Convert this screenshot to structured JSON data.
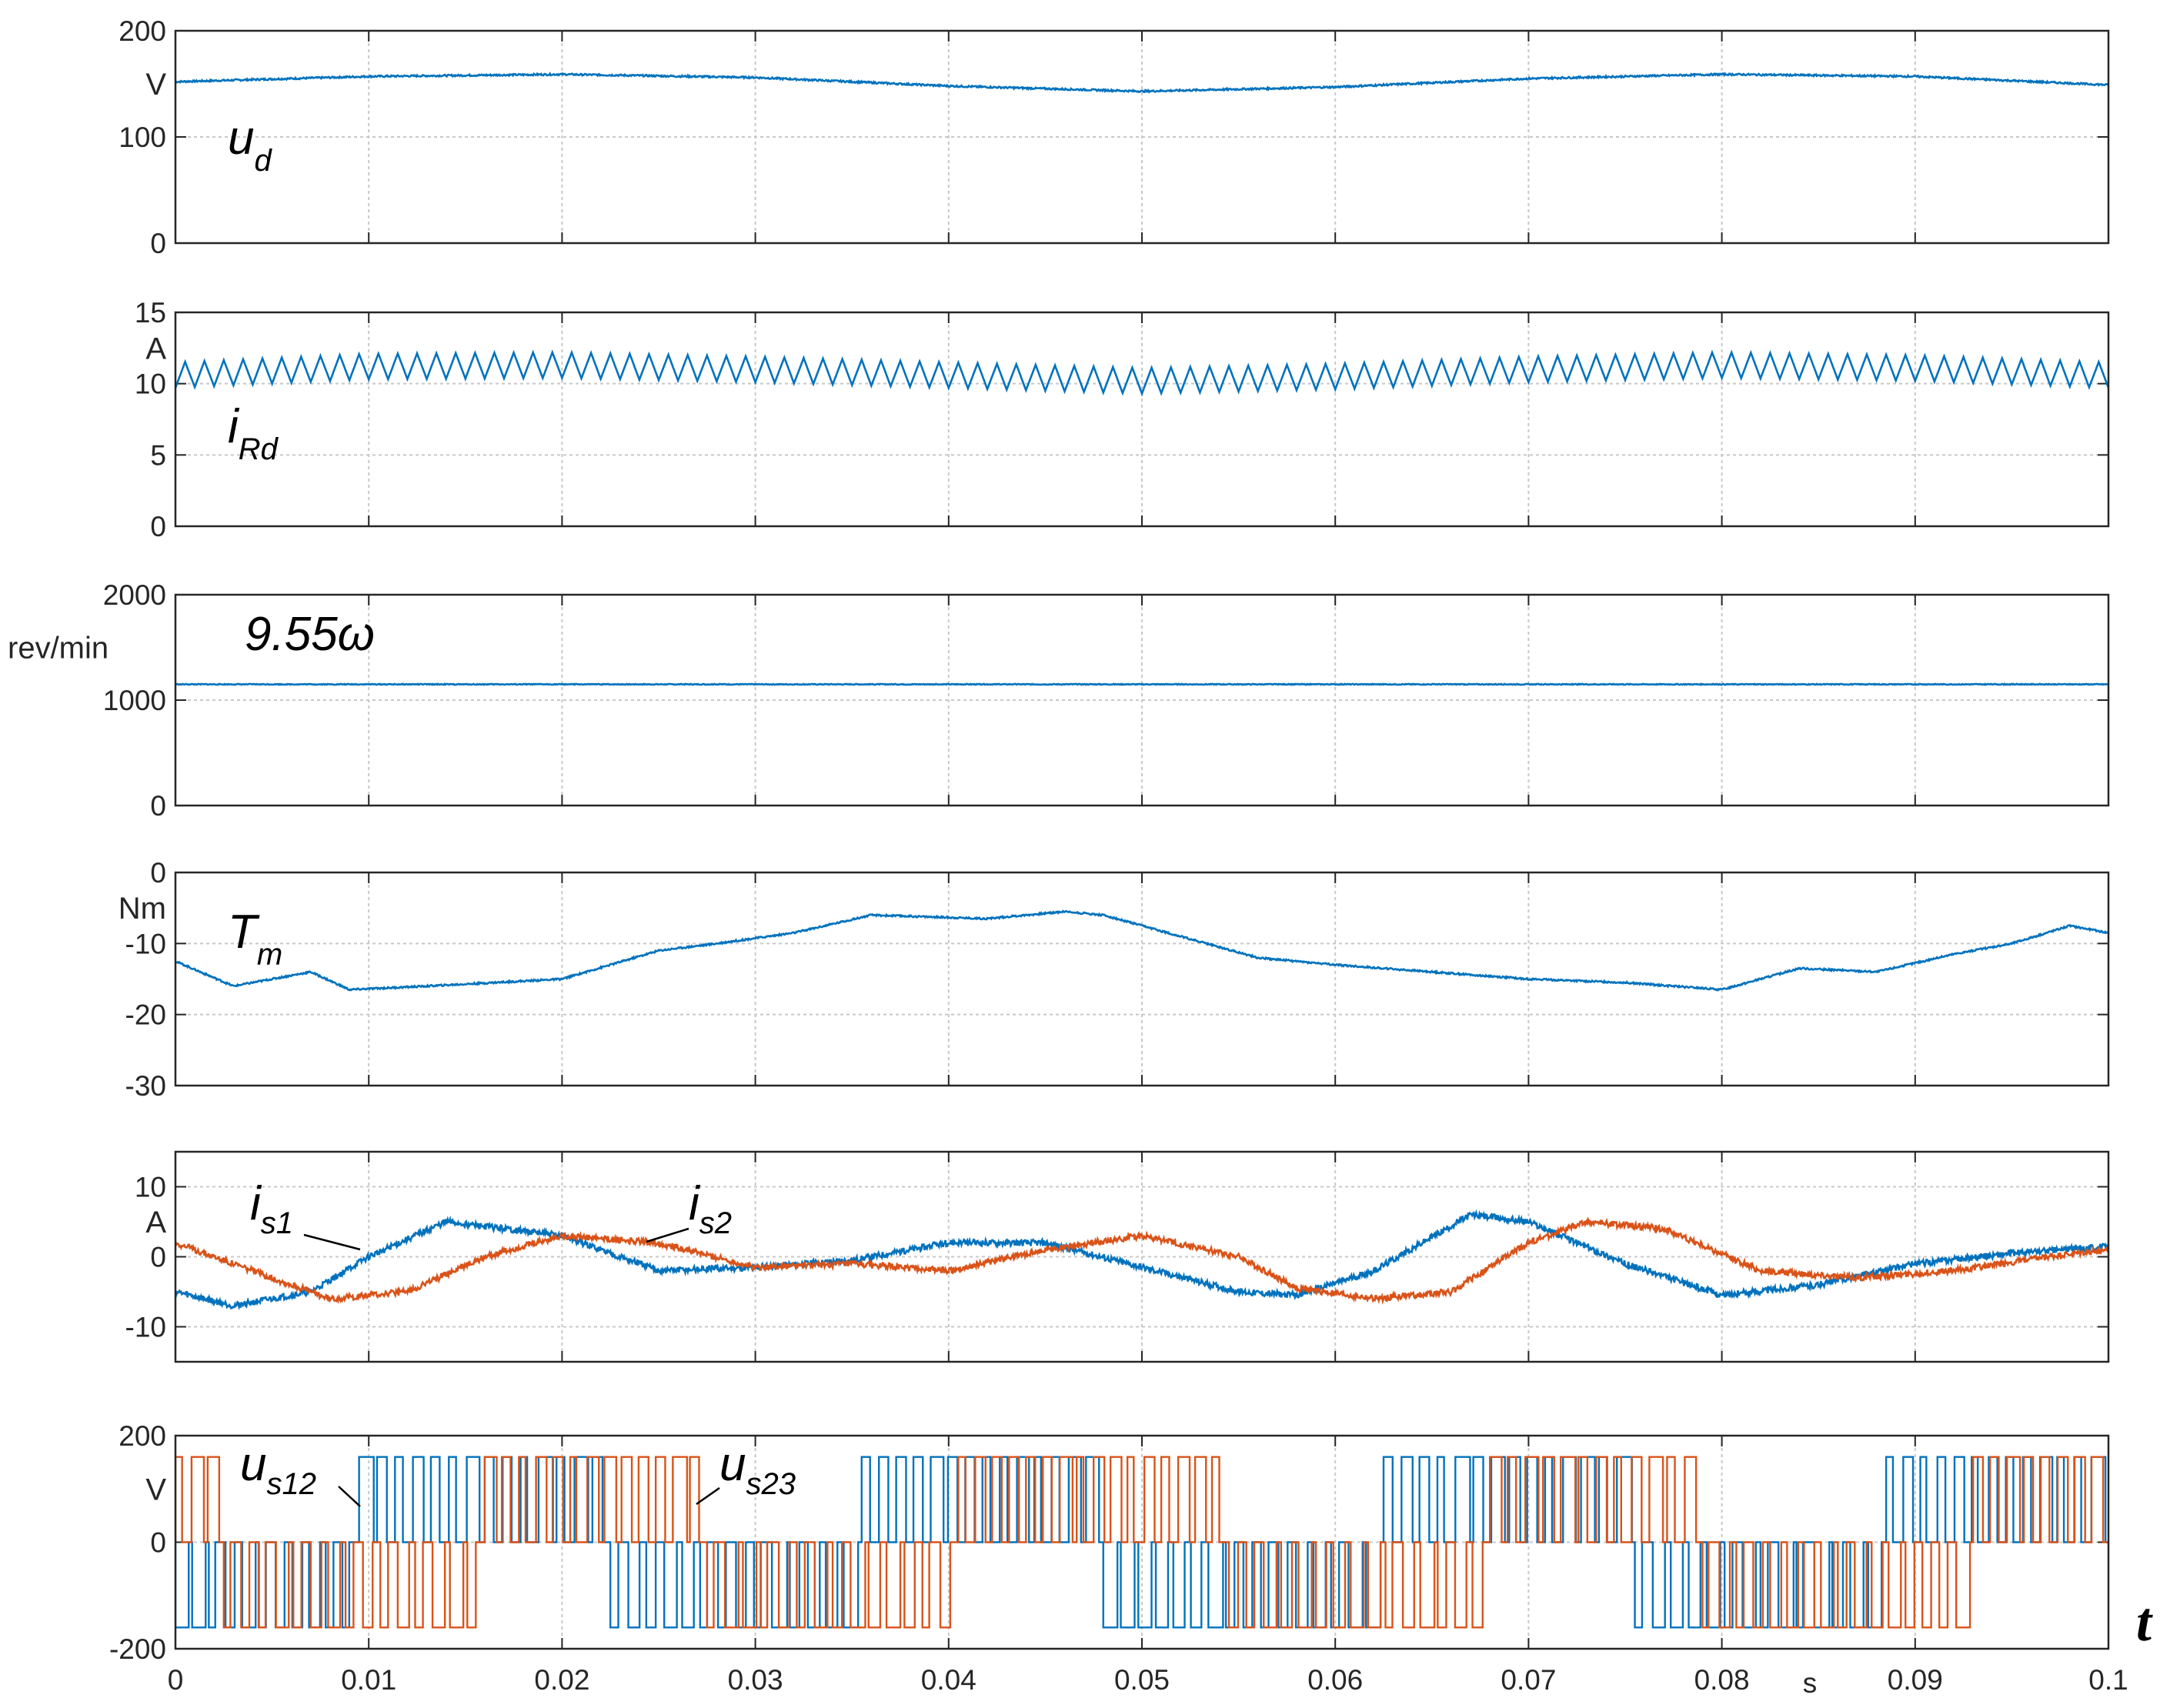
{
  "chart_data": [
    {
      "type": "line",
      "ylabel": "V",
      "yticks": [
        "200",
        "100",
        "0"
      ],
      "ylim": [
        0,
        200
      ],
      "xlim": [
        0,
        0.1
      ],
      "grid": true,
      "label_main": "u",
      "label_sub": "d",
      "series": [
        {
          "color": "#0072BD",
          "x": [
            0,
            0.01,
            0.02,
            0.03,
            0.04,
            0.05,
            0.06,
            0.07,
            0.08,
            0.09,
            0.1
          ],
          "y": [
            152,
            157,
            159,
            156,
            148,
            143,
            147,
            155,
            159,
            157,
            149
          ]
        }
      ]
    },
    {
      "type": "line",
      "ylabel": "A",
      "yticks": [
        "15",
        "10",
        "5",
        "0"
      ],
      "ylim": [
        0,
        15
      ],
      "xlim": [
        0,
        0.1
      ],
      "grid": true,
      "label_main": "i",
      "label_sub": "Rd",
      "ripple_amplitude": 0.9,
      "ripple_cycles": 100,
      "series": [
        {
          "color": "#0072BD",
          "x": [
            0,
            0.01,
            0.02,
            0.03,
            0.04,
            0.05,
            0.06,
            0.07,
            0.08,
            0.09,
            0.1
          ],
          "y": [
            10.6,
            11.2,
            11.3,
            11.0,
            10.6,
            10.2,
            10.5,
            11.0,
            11.3,
            11.1,
            10.6
          ]
        }
      ]
    },
    {
      "type": "line",
      "ylabel": "rev/min",
      "yticks": [
        "2000",
        "1000",
        "0"
      ],
      "ylim": [
        0,
        2000
      ],
      "xlim": [
        0,
        0.1
      ],
      "grid": true,
      "label_main": "9.55ω",
      "label_sub": "",
      "series": [
        {
          "color": "#0072BD",
          "x": [
            0,
            0.1
          ],
          "y": [
            1150,
            1150
          ]
        }
      ]
    },
    {
      "type": "line",
      "ylabel": "Nm",
      "yticks": [
        "0",
        "-10",
        "-20",
        "-30"
      ],
      "ylim": [
        -30,
        0
      ],
      "xlim": [
        0,
        0.1
      ],
      "grid": true,
      "label_main": "T",
      "label_sub": "m",
      "series": [
        {
          "color": "#0072BD",
          "x": [
            0,
            0.003,
            0.007,
            0.009,
            0.013,
            0.02,
            0.025,
            0.028,
            0.032,
            0.036,
            0.042,
            0.046,
            0.048,
            0.052,
            0.056,
            0.06,
            0.065,
            0.07,
            0.075,
            0.08,
            0.084,
            0.088,
            0.092,
            0.095,
            0.098,
            0.1
          ],
          "y": [
            -12.5,
            -16,
            -14,
            -16.5,
            -16,
            -15,
            -11,
            -10,
            -8.5,
            -6,
            -6.5,
            -5.5,
            -6,
            -9,
            -12,
            -13,
            -14,
            -15,
            -15.5,
            -16.5,
            -13.5,
            -14,
            -11.5,
            -10,
            -7.5,
            -8.5
          ]
        }
      ]
    },
    {
      "type": "line",
      "ylabel": "A",
      "yticks": [
        "10",
        "0",
        "-10"
      ],
      "ylim": [
        -15,
        15
      ],
      "xlim": [
        0,
        0.1
      ],
      "grid": true,
      "series": [
        {
          "name": "i_s1",
          "label_main": "i",
          "label_sub": "s1",
          "color": "#0072BD",
          "x": [
            0,
            0.003,
            0.007,
            0.01,
            0.014,
            0.02,
            0.025,
            0.03,
            0.035,
            0.04,
            0.045,
            0.05,
            0.055,
            0.058,
            0.062,
            0.067,
            0.07,
            0.075,
            0.08,
            0.085,
            0.09,
            0.095,
            0.1
          ],
          "y": [
            -5,
            -7,
            -5,
            0,
            5,
            3,
            -2,
            -1.5,
            -0.5,
            2,
            2,
            -1.5,
            -5,
            -5.5,
            -2,
            6,
            5,
            -1,
            -5.5,
            -4,
            -1,
            0.5,
            1.5
          ]
        },
        {
          "name": "i_s2",
          "label_main": "i",
          "label_sub": "s2",
          "color": "#D95319",
          "x": [
            0,
            0.003,
            0.008,
            0.012,
            0.016,
            0.02,
            0.025,
            0.03,
            0.035,
            0.04,
            0.045,
            0.05,
            0.055,
            0.058,
            0.062,
            0.066,
            0.07,
            0.073,
            0.077,
            0.082,
            0.087,
            0.092,
            0.097,
            0.1
          ],
          "y": [
            2,
            -1,
            -6,
            -5,
            0,
            3,
            2,
            -1.5,
            -1,
            -2,
            1,
            3,
            0,
            -4.5,
            -6,
            -5,
            2,
            5,
            4,
            -2,
            -3,
            -2,
            0,
            1
          ]
        }
      ]
    },
    {
      "type": "line",
      "ylabel": "V",
      "yticks": [
        "200",
        "0",
        "-200"
      ],
      "ylim": [
        -200,
        200
      ],
      "xlim": [
        0,
        0.1
      ],
      "grid": true,
      "xticks": [
        "0",
        "0.01",
        "0.02",
        "0.03",
        "0.04",
        "0.05",
        "0.06",
        "0.07",
        "0.08",
        "0.09",
        "0.1"
      ],
      "xunit": "s",
      "xlabel": "t",
      "pwm_amplitude": 160,
      "series": [
        {
          "name": "u_s12",
          "label_main": "u",
          "label_sub": "s12",
          "color": "#0072BD",
          "segments": [
            [
              0.0,
              0.0095,
              -1
            ],
            [
              0.0095,
              0.0225,
              1
            ],
            [
              0.0225,
              0.0355,
              -1
            ],
            [
              0.0355,
              0.048,
              1
            ],
            [
              0.048,
              0.0625,
              -1
            ],
            [
              0.0625,
              0.0755,
              1
            ],
            [
              0.0755,
              0.0885,
              -1
            ],
            [
              0.0885,
              0.1,
              1
            ]
          ]
        },
        {
          "name": "u_s23",
          "label_main": "u",
          "label_sub": "s23",
          "color": "#D95319",
          "segments": [
            [
              0.0,
              0.0025,
              1
            ],
            [
              0.0025,
              0.016,
              -1
            ],
            [
              0.016,
              0.0275,
              1
            ],
            [
              0.0275,
              0.0405,
              -1
            ],
            [
              0.0405,
              0.0545,
              1
            ],
            [
              0.0545,
              0.068,
              -1
            ],
            [
              0.068,
              0.079,
              1
            ],
            [
              0.079,
              0.093,
              -1
            ],
            [
              0.093,
              0.1,
              1
            ]
          ]
        }
      ]
    }
  ]
}
